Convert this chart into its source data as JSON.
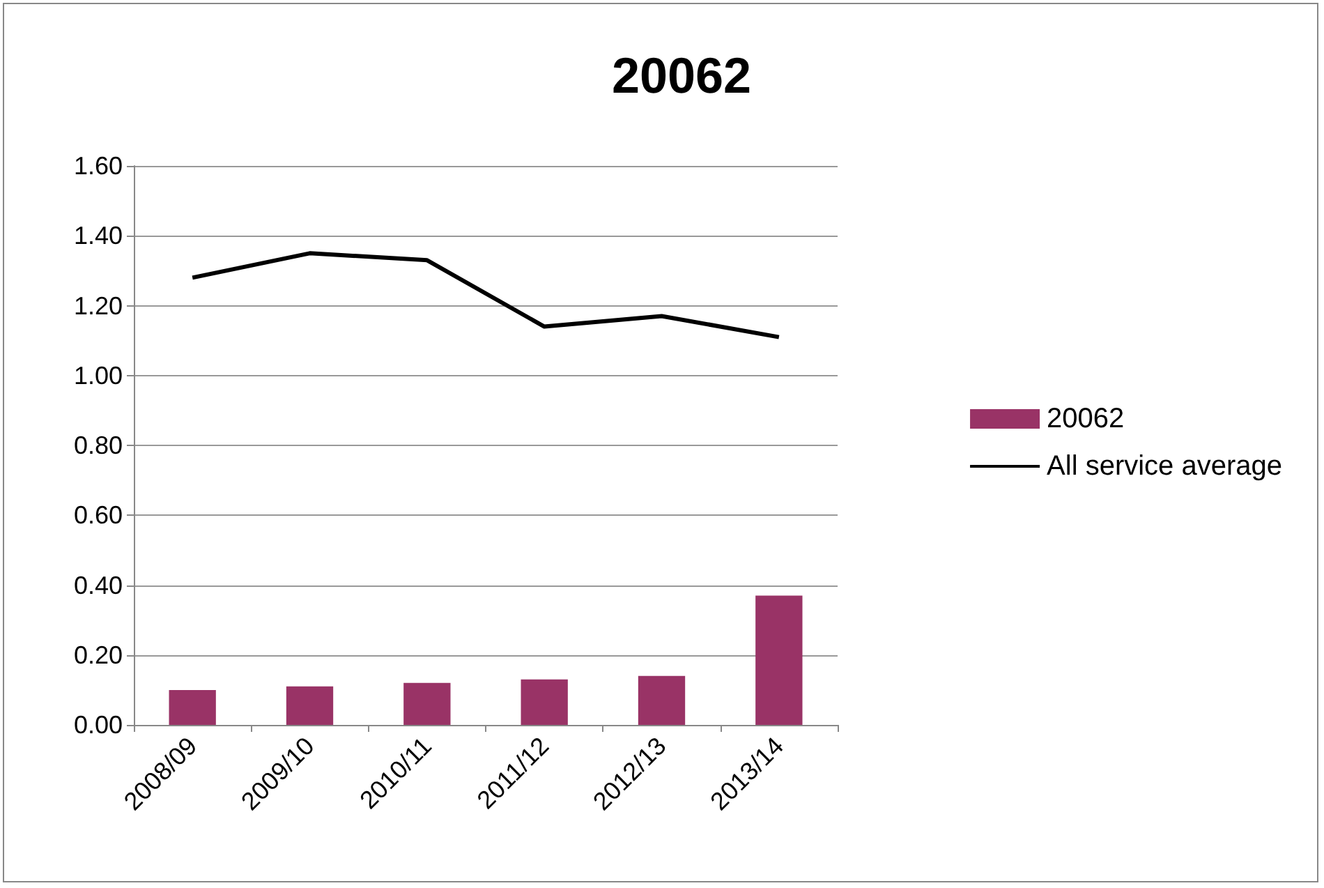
{
  "chart_data": {
    "type": "bar",
    "title": "20062",
    "categories": [
      "2008/09",
      "2009/10",
      "2010/11",
      "2011/12",
      "2012/13",
      "2013/14"
    ],
    "series": [
      {
        "name": "20062",
        "color": "#993366",
        "values": [
          0.1,
          0.11,
          0.12,
          0.13,
          0.14,
          0.37
        ]
      },
      {
        "name": "All service average",
        "type": "line",
        "color": "#000000",
        "values": [
          1.28,
          1.35,
          1.33,
          1.14,
          1.17,
          1.11
        ]
      }
    ],
    "ylim": [
      0,
      1.6
    ],
    "yticks": [
      {
        "value": 0,
        "label": "0.00"
      },
      {
        "value": 0.2,
        "label": "0.20"
      },
      {
        "value": 0.4,
        "label": "0.40"
      },
      {
        "value": 0.6,
        "label": "0.60"
      },
      {
        "value": 0.8,
        "label": "0.80"
      },
      {
        "value": 1,
        "label": "1.00"
      },
      {
        "value": 1.2,
        "label": "1.20"
      },
      {
        "value": 1.4,
        "label": "1.40"
      },
      {
        "value": 1.6,
        "label": "1.60"
      }
    ],
    "grid": "y",
    "legend": "right",
    "marker": "none"
  }
}
